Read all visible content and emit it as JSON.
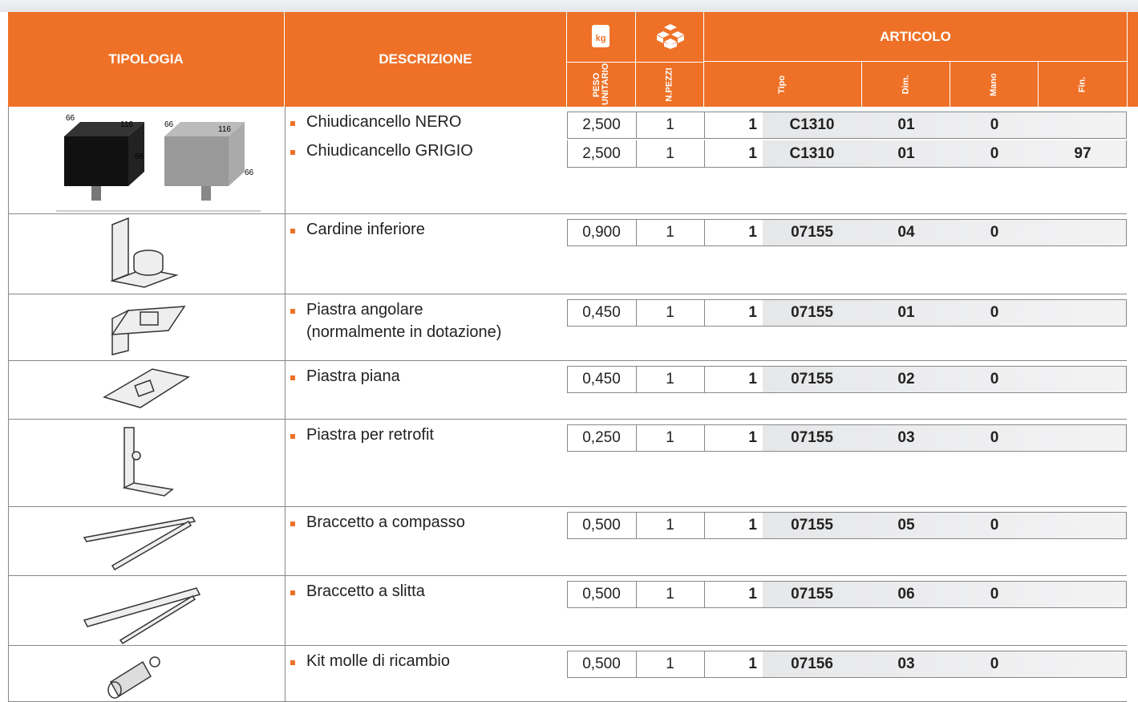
{
  "header": {
    "tipologia": "TIPOLOGIA",
    "descrizione": "DESCRIZIONE",
    "peso_icon": "kg",
    "peso": "PESO UNITARIO",
    "pezzi": "N.PEZZI",
    "articolo": "ARTICOLO",
    "tipo": "Tipo",
    "dim": "Dim.",
    "mano": "Mano",
    "fin": "Fin."
  },
  "image_labels": [
    "66",
    "116",
    "66",
    "66",
    "116",
    "66"
  ],
  "rows": [
    {
      "items": [
        {
          "descrizione": [
            "Chiudicancello NERO"
          ],
          "peso": "2,500",
          "pezzi": "1",
          "qty": "1",
          "tipo": "C1310",
          "dim": "01",
          "mano": "0"
        },
        {
          "descrizione": [
            "Chiudicancello GRIGIO"
          ],
          "peso": "2,500",
          "pezzi": "1",
          "qty": "1",
          "tipo": "C1310",
          "dim": "01",
          "mano": "0",
          "fin": "97"
        }
      ]
    },
    {
      "items": [
        {
          "descrizione": [
            "Cardine inferiore"
          ],
          "peso": "0,900",
          "pezzi": "1",
          "qty": "1",
          "tipo": "07155",
          "dim": "04",
          "mano": "0"
        }
      ]
    },
    {
      "items": [
        {
          "descrizione": [
            "Piastra angolare",
            "(normalmente in dotazione)"
          ],
          "peso": "0,450",
          "pezzi": "1",
          "qty": "1",
          "tipo": "07155",
          "dim": "01",
          "mano": "0"
        }
      ]
    },
    {
      "items": [
        {
          "descrizione": [
            "Piastra piana"
          ],
          "peso": "0,450",
          "pezzi": "1",
          "qty": "1",
          "tipo": "07155",
          "dim": "02",
          "mano": "0"
        }
      ]
    },
    {
      "items": [
        {
          "descrizione": [
            "Piastra per retrofit"
          ],
          "peso": "0,250",
          "pezzi": "1",
          "qty": "1",
          "tipo": "07155",
          "dim": "03",
          "mano": "0"
        }
      ]
    },
    {
      "items": [
        {
          "descrizione": [
            "Braccetto a compasso"
          ],
          "peso": "0,500",
          "pezzi": "1",
          "qty": "1",
          "tipo": "07155",
          "dim": "05",
          "mano": "0"
        }
      ]
    },
    {
      "items": [
        {
          "descrizione": [
            "Braccetto a slitta"
          ],
          "peso": "0,500",
          "pezzi": "1",
          "qty": "1",
          "tipo": "07155",
          "dim": "06",
          "mano": "0"
        }
      ]
    },
    {
      "items": [
        {
          "descrizione": [
            "Kit molle di ricambio"
          ],
          "peso": "0,500",
          "pezzi": "1",
          "qty": "1",
          "tipo": "07156",
          "dim": "03",
          "mano": "0"
        }
      ]
    }
  ]
}
